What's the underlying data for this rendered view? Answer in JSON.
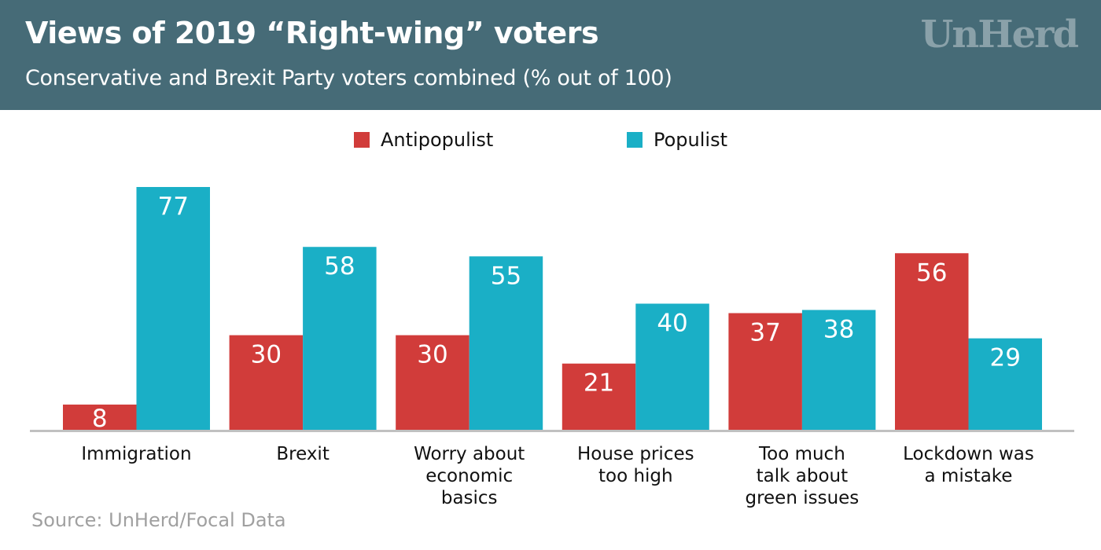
{
  "header": {
    "title": "Views of 2019 “Right-wing” voters",
    "subtitle": "Conservative and Brexit Party voters combined (% out of 100)",
    "logo": "UnHerd"
  },
  "colors": {
    "header_bg": "#466b77",
    "antipopulist": "#d13c3a",
    "populist": "#1aafc6",
    "axis": "#c0c0c0",
    "logo": "#8aa1a9",
    "source": "#a0a0a0"
  },
  "source": "Source: UnHerd/Focal Data",
  "chart_data": {
    "type": "bar",
    "title": "Views of 2019 “Right-wing” voters",
    "subtitle": "Conservative and Brexit Party voters combined (% out of 100)",
    "xlabel": "",
    "ylabel": "",
    "ylim": [
      0,
      100
    ],
    "grid": false,
    "legend_position": "top-center",
    "categories": [
      [
        "Immigration"
      ],
      [
        "Brexit"
      ],
      [
        "Worry about",
        "economic",
        "basics"
      ],
      [
        "House prices",
        "too high"
      ],
      [
        "Too much",
        "talk about",
        "green issues"
      ],
      [
        "Lockdown was",
        "a mistake"
      ]
    ],
    "series": [
      {
        "name": "Antipopulist",
        "color": "#d13c3a",
        "values": [
          8,
          30,
          30,
          21,
          37,
          56
        ]
      },
      {
        "name": "Populist",
        "color": "#1aafc6",
        "values": [
          77,
          58,
          55,
          40,
          38,
          29
        ]
      }
    ]
  }
}
